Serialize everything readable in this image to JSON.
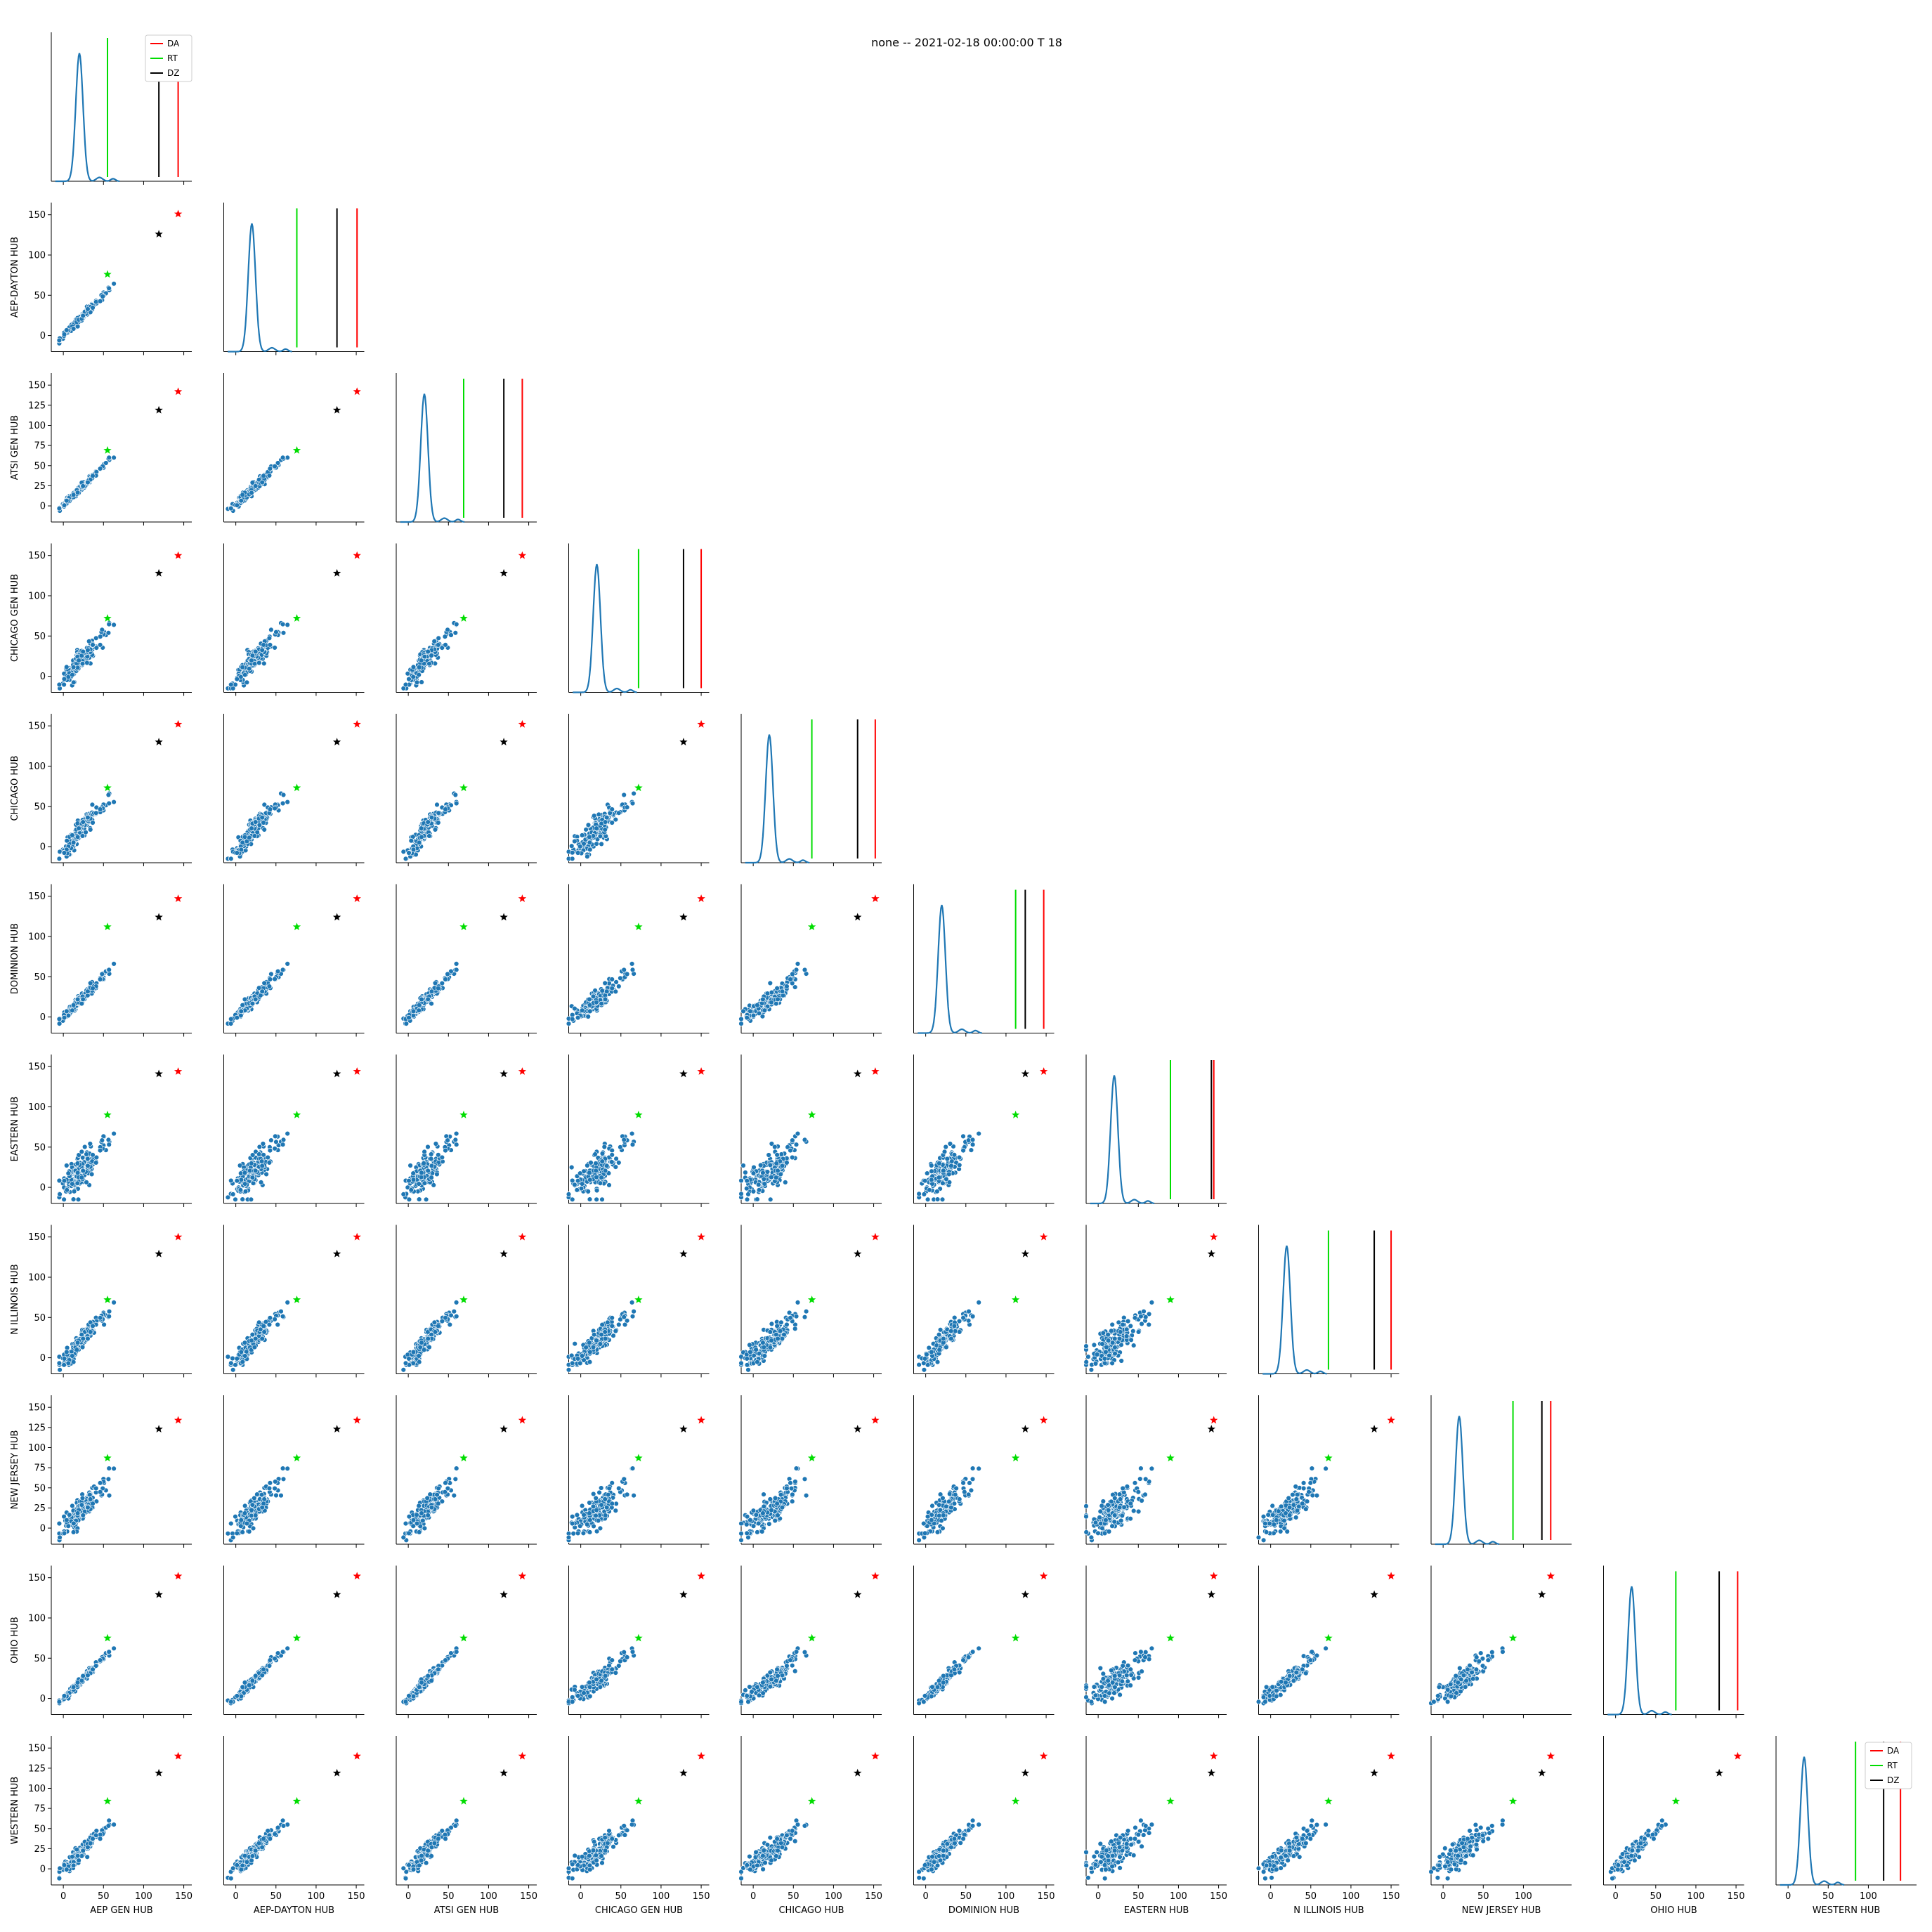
{
  "chart_data": {
    "type": "scatter",
    "title": "none -- 2021-02-18 00:00:00 T 18",
    "layout": "pairplot-lower-triangle",
    "hubs": [
      "AEP GEN HUB",
      "AEP-DAYTON HUB",
      "ATSI GEN HUB",
      "CHICAGO GEN HUB",
      "CHICAGO HUB",
      "DOMINION HUB",
      "EASTERN HUB",
      "N ILLINOIS HUB",
      "NEW JERSEY HUB",
      "OHIO HUB",
      "WESTERN HUB"
    ],
    "legend": {
      "entries": [
        {
          "label": "DA",
          "color": "#ff0000"
        },
        {
          "label": "RT",
          "color": "#00dd00"
        },
        {
          "label": "DZ",
          "color": "#000000"
        }
      ]
    },
    "highlight_values": {
      "DA": [
        143,
        151,
        142,
        150,
        152,
        147,
        144,
        150,
        134,
        152,
        140
      ],
      "RT": [
        55,
        76,
        69,
        72,
        73,
        112,
        90,
        72,
        87,
        75,
        84
      ],
      "DZ": [
        119,
        126,
        119,
        128,
        130,
        124,
        141,
        129,
        123,
        129,
        119
      ]
    },
    "hub_typical_range": [
      -15,
      70
    ],
    "kde_peak": 20,
    "series_color": "#1f77b4",
    "x_ticks": {
      "0": [
        0,
        50,
        100,
        150
      ],
      "1": [
        0,
        50,
        100,
        150
      ],
      "2": [
        0,
        50,
        100,
        150
      ],
      "3": [
        0,
        50,
        100,
        150
      ],
      "4": [
        0,
        50,
        100,
        150
      ],
      "5": [
        0,
        50,
        100,
        150
      ],
      "6": [
        0,
        50,
        100,
        150
      ],
      "7": [
        0,
        50,
        100,
        150
      ],
      "8": [
        0,
        50,
        100
      ],
      "9": [
        0,
        50,
        100,
        150
      ],
      "10": [
        0,
        50,
        100
      ]
    },
    "y_ticks": {
      "1": [
        0,
        50,
        100,
        150
      ],
      "2": [
        0,
        25,
        50,
        75,
        100,
        125,
        150
      ],
      "3": [
        0,
        50,
        100,
        150
      ],
      "4": [
        0,
        50,
        100,
        150
      ],
      "5": [
        0,
        50,
        100,
        150
      ],
      "6": [
        0,
        50,
        100,
        150
      ],
      "7": [
        0,
        50,
        100,
        150
      ],
      "8": [
        0,
        25,
        50,
        75,
        100,
        125,
        150
      ],
      "9": [
        0,
        50,
        100,
        150
      ],
      "10": [
        0,
        25,
        50,
        75,
        100,
        125,
        150
      ]
    },
    "grid": false
  }
}
